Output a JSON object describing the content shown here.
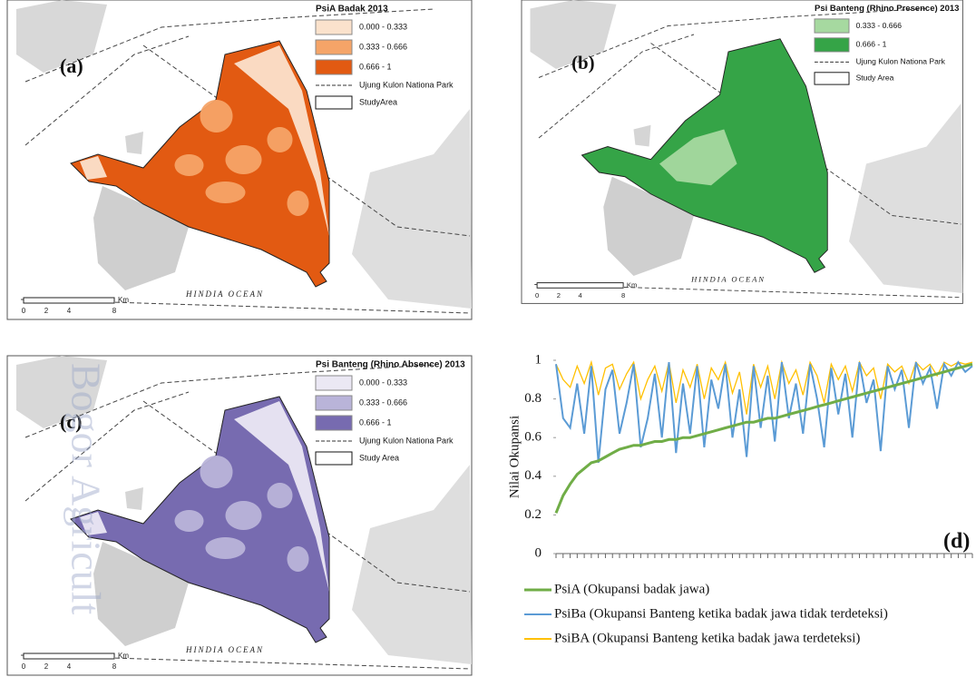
{
  "watermark": "Bogor Agricult",
  "maps": [
    {
      "label": "(a)",
      "legend_title": "PsiA Badak 2013",
      "classes": [
        {
          "label": "0.000 - 0.333",
          "color": "#fbe2cc"
        },
        {
          "label": "0.333 - 0.666",
          "color": "#f5a468"
        },
        {
          "label": "0.666 - 1",
          "color": "#e25a12"
        }
      ],
      "boundary_label": "Ujung Kulon Nationa Park",
      "study_area_label": "StudyArea",
      "ocean_label": "HINDIA OCEAN",
      "scale_labels": [
        "0",
        "2",
        "4",
        "8"
      ],
      "scale_unit": "Km"
    },
    {
      "label": "(b)",
      "legend_title": "Psi Banteng (Rhino Presence) 2013",
      "classes": [
        {
          "label": "0.333 - 0.666",
          "color": "#a6d9a0"
        },
        {
          "label": "0.666 - 1",
          "color": "#35a447"
        }
      ],
      "boundary_label": "Ujung Kulon Nationa Park",
      "study_area_label": "Study Area",
      "ocean_label": "HINDIA OCEAN",
      "scale_labels": [
        "0",
        "2",
        "4",
        "8"
      ],
      "scale_unit": "Km"
    },
    {
      "label": "(c)",
      "legend_title": "Psi Banteng (Rhino Absence) 2013",
      "classes": [
        {
          "label": "0.000 - 0.333",
          "color": "#ebe8f4"
        },
        {
          "label": "0.333 - 0.666",
          "color": "#b9b4d9"
        },
        {
          "label": "0.666 - 1",
          "color": "#776bb0"
        }
      ],
      "boundary_label": "Ujung Kulon Nationa Park",
      "study_area_label": "Study Area",
      "ocean_label": "HINDIA OCEAN",
      "scale_labels": [
        "0",
        "2",
        "4",
        "8"
      ],
      "scale_unit": "Km"
    }
  ],
  "chart_data": {
    "type": "line",
    "annotation": "(d)",
    "y_label": "Nilai Okupansi",
    "categories": [
      null,
      null,
      null,
      null,
      null,
      null,
      null,
      null,
      null,
      null,
      null,
      null,
      null,
      null,
      null,
      null,
      null,
      null,
      null,
      null,
      null,
      null,
      null,
      null,
      null,
      null,
      null,
      null,
      null,
      null,
      null,
      null,
      null,
      null,
      null,
      null,
      null,
      null,
      null,
      null,
      null,
      null,
      null,
      null,
      null,
      null,
      null,
      null,
      null,
      null,
      null,
      null,
      null,
      null,
      null,
      null,
      null,
      null,
      null,
      null
    ],
    "ylim": [
      0,
      1
    ],
    "yticks": [
      0,
      0.2,
      0.4,
      0.6,
      0.8,
      1
    ],
    "series": [
      {
        "name": "PsiA (Okupansi badak jawa)",
        "color": "#70ad47",
        "values": [
          0.21,
          0.3,
          0.36,
          0.41,
          0.44,
          0.47,
          0.48,
          0.5,
          0.52,
          0.54,
          0.55,
          0.56,
          0.56,
          0.57,
          0.58,
          0.58,
          0.59,
          0.59,
          0.6,
          0.6,
          0.61,
          0.62,
          0.63,
          0.64,
          0.65,
          0.66,
          0.67,
          0.68,
          0.68,
          0.69,
          0.7,
          0.7,
          0.71,
          0.72,
          0.73,
          0.74,
          0.75,
          0.76,
          0.77,
          0.78,
          0.79,
          0.8,
          0.81,
          0.82,
          0.83,
          0.84,
          0.85,
          0.86,
          0.87,
          0.88,
          0.89,
          0.9,
          0.91,
          0.92,
          0.93,
          0.94,
          0.95,
          0.96,
          0.97,
          0.98
        ]
      },
      {
        "name": "PsiBa (Okupansi Banteng ketika badak jawa tidak terdeteksi)",
        "color": "#5b9bd5",
        "values": [
          0.98,
          0.7,
          0.65,
          0.88,
          0.62,
          0.97,
          0.47,
          0.85,
          0.95,
          0.62,
          0.78,
          0.98,
          0.55,
          0.7,
          0.93,
          0.6,
          0.99,
          0.52,
          0.88,
          0.62,
          0.97,
          0.55,
          0.9,
          0.75,
          0.98,
          0.6,
          0.85,
          0.5,
          0.97,
          0.65,
          0.92,
          0.58,
          0.99,
          0.7,
          0.88,
          0.62,
          0.98,
          0.8,
          0.55,
          0.96,
          0.72,
          0.93,
          0.6,
          0.99,
          0.78,
          0.9,
          0.53,
          0.97,
          0.85,
          0.95,
          0.65,
          0.99,
          0.88,
          0.96,
          0.75,
          0.98,
          0.92,
          0.99,
          0.94,
          0.97
        ]
      },
      {
        "name": "PsiBA (Okupansi Banteng ketika badak jawa terdeteksi)",
        "color": "#ffc000",
        "values": [
          0.98,
          0.9,
          0.86,
          0.97,
          0.88,
          0.99,
          0.82,
          0.96,
          0.98,
          0.85,
          0.93,
          0.99,
          0.8,
          0.9,
          0.97,
          0.84,
          0.99,
          0.78,
          0.95,
          0.86,
          0.98,
          0.8,
          0.96,
          0.9,
          0.99,
          0.83,
          0.94,
          0.72,
          0.98,
          0.86,
          0.97,
          0.8,
          0.99,
          0.88,
          0.95,
          0.82,
          0.99,
          0.92,
          0.78,
          0.98,
          0.9,
          0.97,
          0.84,
          0.99,
          0.92,
          0.96,
          0.8,
          0.98,
          0.94,
          0.97,
          0.88,
          0.99,
          0.95,
          0.98,
          0.92,
          0.99,
          0.97,
          0.99,
          0.98,
          0.99
        ]
      }
    ]
  }
}
